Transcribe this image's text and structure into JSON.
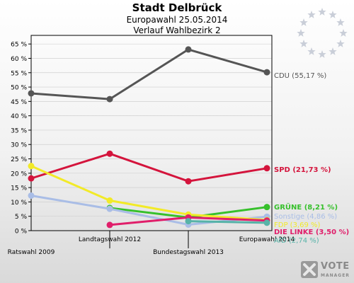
{
  "header": {
    "title": "Stadt Delbrück",
    "subtitle1": "Europawahl 25.05.2014",
    "subtitle2": "Verlauf Wahlbezirk 2"
  },
  "branding": {
    "name": "VOTE",
    "sub": "MANAGER",
    "eu_emblem": "eu-stars-icon"
  },
  "chart_data": {
    "type": "line",
    "title": "Stadt Delbrück",
    "subtitle": "Europawahl 25.05.2014 / Verlauf Wahlbezirk 2",
    "categories": [
      "Ratswahl 2009",
      "Landtagswahl 2012",
      "Bundestagswahl 2013",
      "Europawahl 2014"
    ],
    "y_ticks": [
      "0 %",
      "5 %",
      "10 %",
      "15 %",
      "20 %",
      "25 %",
      "30 %",
      "35 %",
      "40 %",
      "45 %",
      "50 %",
      "55 %",
      "60 %",
      "65 %"
    ],
    "ylim": [
      0,
      68
    ],
    "grid": true,
    "series": [
      {
        "name": "CDU",
        "label": "CDU (55,17 %)",
        "color": "#555555",
        "values": [
          47.8,
          45.8,
          63.1,
          55.17
        ]
      },
      {
        "name": "SPD",
        "label": "SPD (21,73 %)",
        "color": "#d4143c",
        "values": [
          18.2,
          26.8,
          17.2,
          21.73
        ]
      },
      {
        "name": "GRÜNE",
        "label": "GRÜNE (8,21 %)",
        "color": "#36c02b",
        "values": [
          null,
          7.9,
          4.6,
          8.21
        ]
      },
      {
        "name": "Sonstige",
        "label": "Sonstige (4,86 %)",
        "color": "#a9bde6",
        "values": [
          12.2,
          7.6,
          2.1,
          4.86
        ]
      },
      {
        "name": "FDP",
        "label": "FDP (3,69 %)",
        "color": "#f2ea28",
        "values": [
          22.5,
          10.5,
          5.6,
          3.69
        ]
      },
      {
        "name": "DIE LINKE",
        "label": "DIE LINKE (3,50 %)",
        "color": "#e01e6a",
        "values": [
          null,
          2.0,
          4.6,
          3.5
        ]
      },
      {
        "name": "AfD",
        "label": "AfD (2,74 %)",
        "color": "#57b3a8",
        "values": [
          null,
          null,
          3.3,
          2.74
        ]
      }
    ]
  }
}
